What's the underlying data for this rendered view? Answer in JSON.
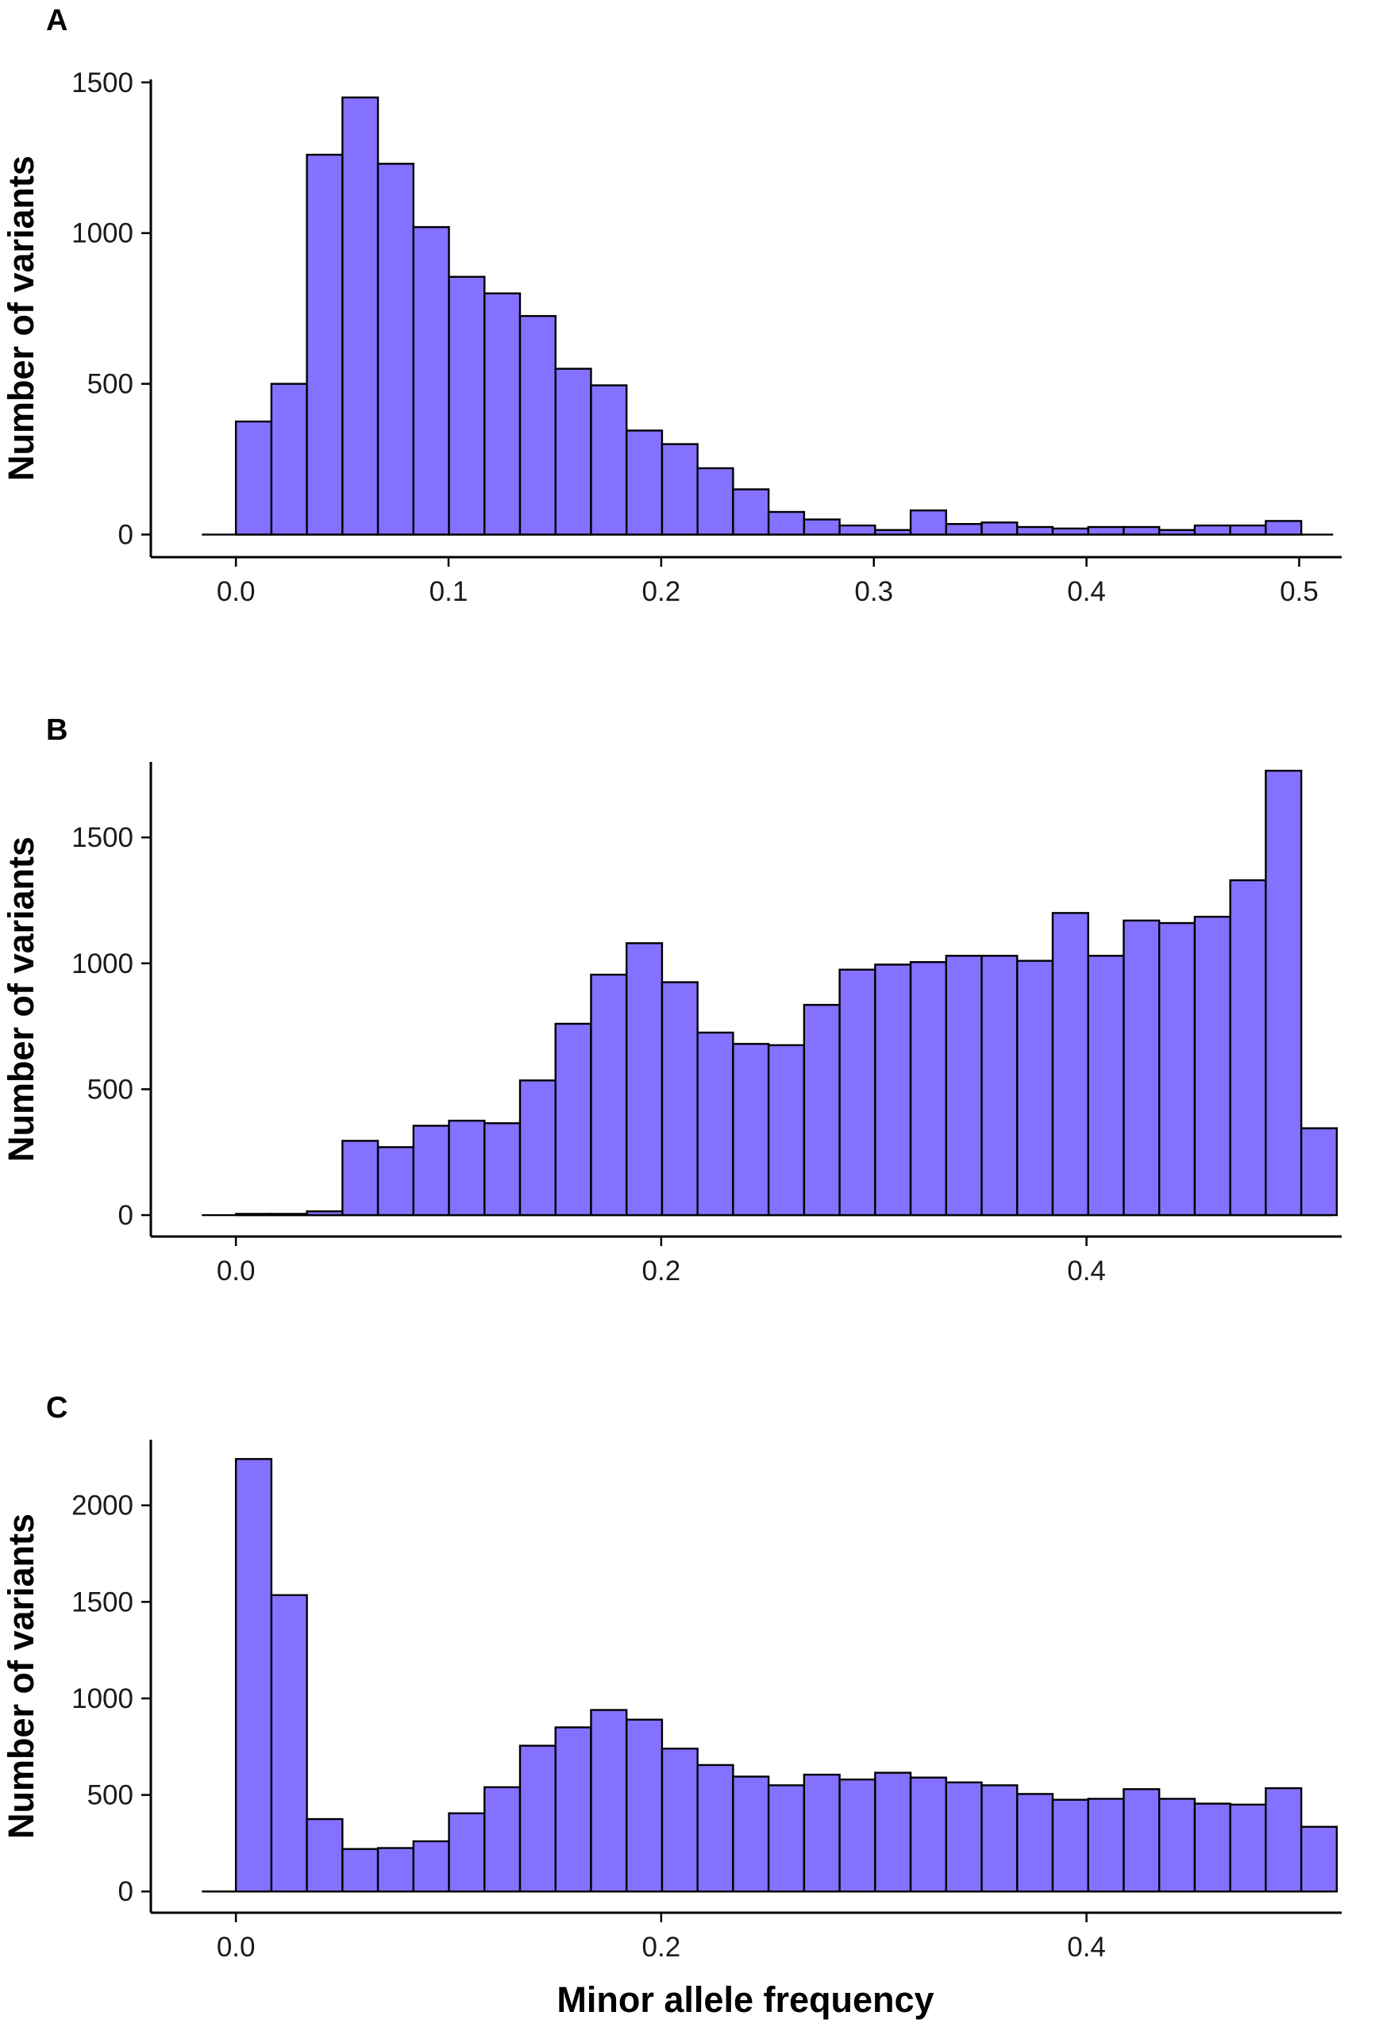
{
  "figure": {
    "bar_color": "#8471FF",
    "bar_edge_color": "#000000"
  },
  "chart_data": [
    {
      "panel": "A",
      "type": "bar",
      "bin_width": 0.0167,
      "bin_start": 0.0,
      "xlabel": "",
      "ylabel": "Number of variants",
      "xlim": [
        -0.04,
        0.52
      ],
      "ylim": [
        -75,
        1510
      ],
      "xticks": [
        0.0,
        0.1,
        0.2,
        0.3,
        0.4,
        0.5
      ],
      "xtick_labels": [
        "0.0",
        "0.1",
        "0.2",
        "0.3",
        "0.4",
        "0.5"
      ],
      "yticks": [
        0,
        500,
        1000,
        1500
      ],
      "ytick_labels": [
        "0",
        "500",
        "1000",
        "1500"
      ],
      "values": [
        375,
        500,
        1260,
        1450,
        1230,
        1020,
        855,
        800,
        725,
        550,
        495,
        345,
        300,
        220,
        150,
        75,
        50,
        30,
        15,
        80,
        35,
        40,
        25,
        20,
        25,
        25,
        15,
        30,
        30,
        45
      ]
    },
    {
      "panel": "B",
      "type": "bar",
      "bin_width": 0.0167,
      "bin_start": 0.0,
      "xlabel": "",
      "ylabel": "Number of variants",
      "xlim": [
        -0.04,
        0.52
      ],
      "ylim": [
        -85,
        1800
      ],
      "xticks": [
        0.0,
        0.2,
        0.4
      ],
      "xtick_labels": [
        "0.0",
        "0.2",
        "0.4"
      ],
      "yticks": [
        0,
        500,
        1000,
        1500
      ],
      "ytick_labels": [
        "0",
        "500",
        "1000",
        "1500"
      ],
      "values": [
        5,
        5,
        15,
        295,
        270,
        355,
        375,
        365,
        535,
        760,
        955,
        1080,
        925,
        725,
        680,
        675,
        835,
        975,
        995,
        1005,
        1030,
        1030,
        1010,
        1200,
        1030,
        1170,
        1160,
        1185,
        1330,
        1765,
        345
      ]
    },
    {
      "panel": "C",
      "type": "bar",
      "bin_width": 0.0167,
      "bin_start": 0.0,
      "xlabel": "Minor allele frequency",
      "ylabel": "Number of variants",
      "xlim": [
        -0.04,
        0.52
      ],
      "ylim": [
        -110,
        2340
      ],
      "xticks": [
        0.0,
        0.2,
        0.4
      ],
      "xtick_labels": [
        "0.0",
        "0.2",
        "0.4"
      ],
      "yticks": [
        0,
        500,
        1000,
        1500,
        2000
      ],
      "ytick_labels": [
        "0",
        "500",
        "1000",
        "1500",
        "2000"
      ],
      "values": [
        2240,
        1535,
        375,
        220,
        225,
        260,
        405,
        540,
        755,
        850,
        940,
        890,
        740,
        655,
        595,
        550,
        605,
        580,
        615,
        590,
        565,
        550,
        505,
        475,
        480,
        530,
        480,
        455,
        450,
        535,
        335
      ]
    }
  ]
}
